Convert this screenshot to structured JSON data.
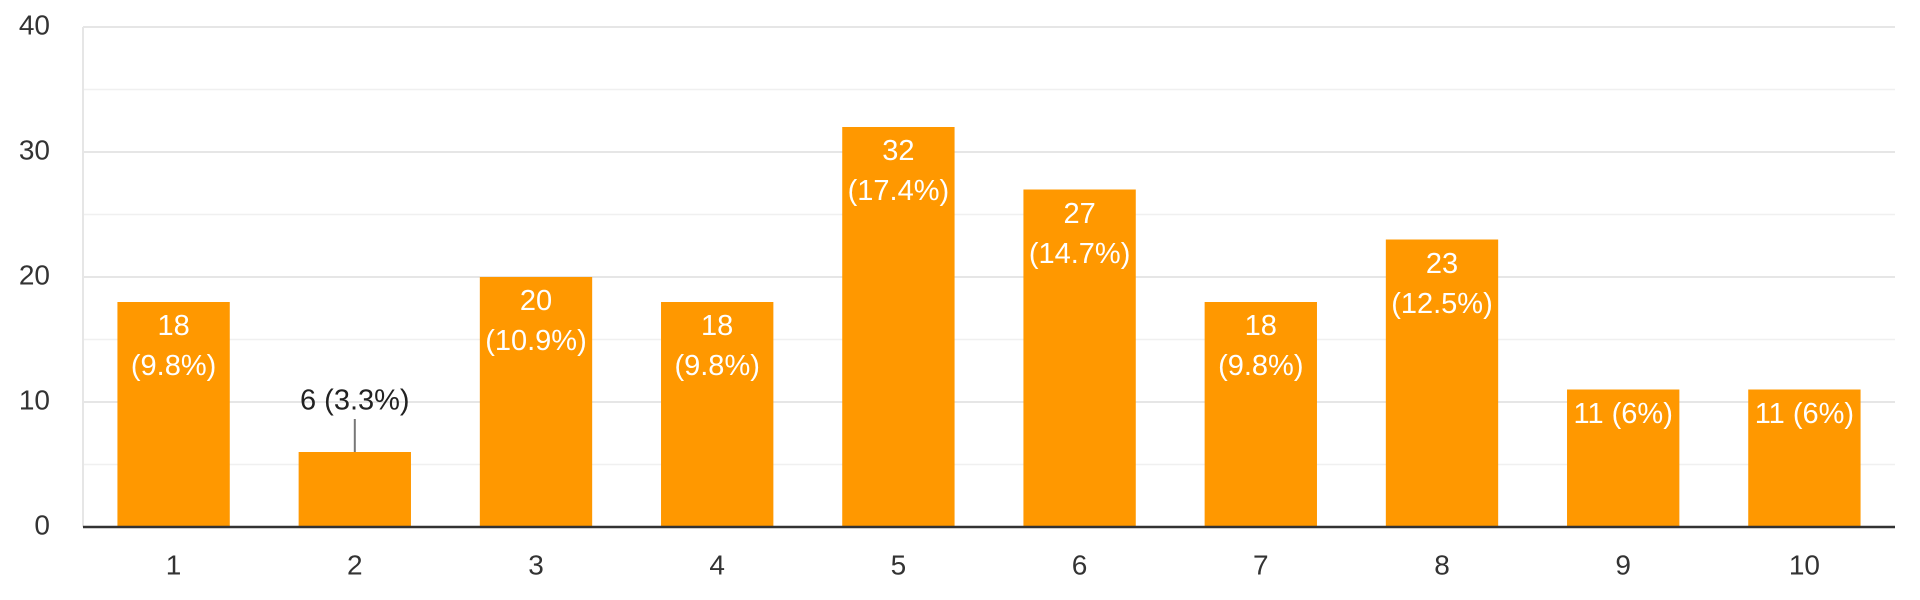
{
  "chart_data": {
    "type": "bar",
    "categories": [
      "1",
      "2",
      "3",
      "4",
      "5",
      "6",
      "7",
      "8",
      "9",
      "10"
    ],
    "values": [
      18,
      6,
      20,
      18,
      32,
      27,
      18,
      23,
      11,
      11
    ],
    "value_labels": [
      "18 (9.8%)",
      "6 (3.3%)",
      "20 (10.9%)",
      "18 (9.8%)",
      "32 (17.4%)",
      "27 (14.7%)",
      "18 (9.8%)",
      "23 (12.5%)",
      "11 (6%)",
      "11 (6%)"
    ],
    "color": "#ff9800",
    "ylim": [
      0,
      40
    ],
    "yticks": [
      0,
      10,
      20,
      30,
      40
    ],
    "grid": true,
    "minor_grid": true
  }
}
